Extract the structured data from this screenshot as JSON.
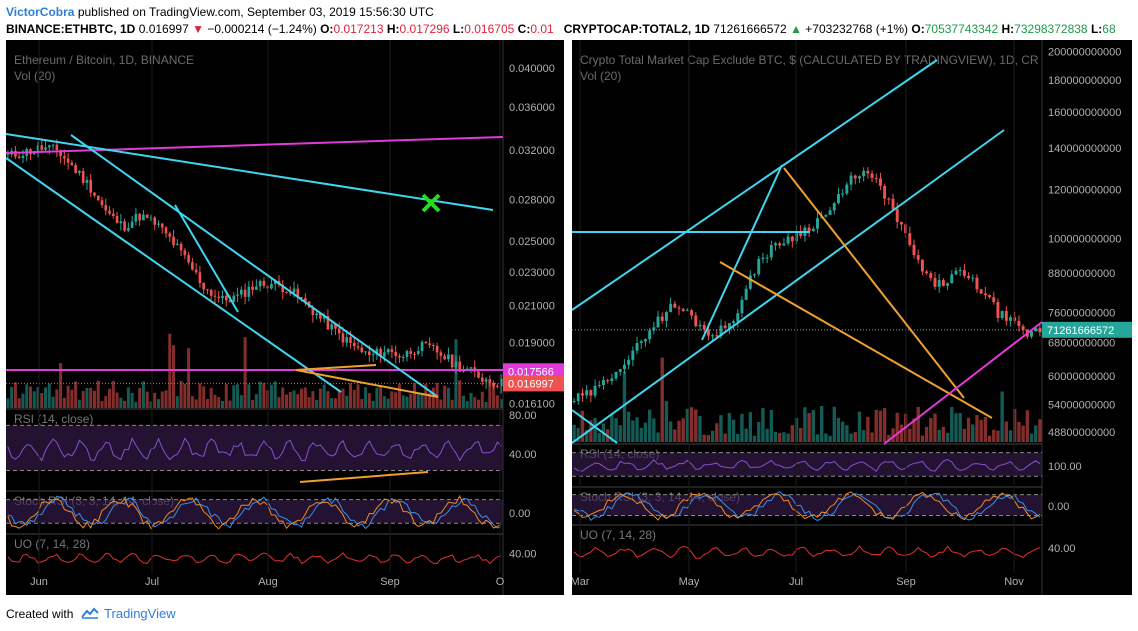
{
  "header": {
    "author": "VictorCobra",
    "published": "published on TradingView.com, September 03, 2019 15:56:30 UTC",
    "left_quote": {
      "symbol": "BINANCE:ETHBTC, 1D",
      "last": "0.016997",
      "arrow": "▼",
      "change": "−0.000214 (−1.24%)",
      "o_label": "O:",
      "o": "0.017213",
      "h_label": "H:",
      "h": "0.017296",
      "l_label": "L:",
      "l": "0.016705",
      "c_label": "C:",
      "c": "0.01"
    },
    "right_quote": {
      "symbol": "CRYPTOCAP:TOTAL2, 1D",
      "last": "71261666572",
      "arrow": "▲",
      "change": "+703232768 (+1%)",
      "o_label": "O:",
      "o": "70537743342",
      "h_label": "H:",
      "h": "73298372838",
      "l_label": "L:",
      "l": "68"
    }
  },
  "footer": {
    "created_with": "Created with",
    "brand": "TradingView"
  },
  "colors": {
    "background": "#000000",
    "up_candle": "#26a69a",
    "down_candle": "#ef5350",
    "cyan": "#3fd6f0",
    "magenta": "#e03ad8",
    "orange": "#f0a030",
    "green_x": "#22dd22",
    "axis_text": "#b0b0b0",
    "rsi_line": "#8a4fd0",
    "stoch_k": "#3a8ee8",
    "stoch_d": "#f08a20",
    "uo_line": "#e03030"
  },
  "chart_data": [
    {
      "type": "candlestick",
      "title": "Ethereum / Bitcoin, 1D, BINANCE",
      "volume_label": "Vol (20)",
      "x_ticks": [
        "Jun",
        "Jul",
        "Aug",
        "Sep",
        "O"
      ],
      "y_ticks": [
        "0.040000",
        "0.036000",
        "0.032000",
        "0.028000",
        "0.025000",
        "0.023000",
        "0.021000",
        "0.019000",
        "0.016100"
      ],
      "ylim": [
        0.0159,
        0.042
      ],
      "scale": "log",
      "price_labels": [
        {
          "value": "0.017566",
          "color": "#e03ad8"
        },
        {
          "value": "0.016997",
          "color": "#ef5350"
        }
      ],
      "series": [
        {
          "name": "close_path",
          "values": [
            0.0315,
            0.0318,
            0.0322,
            0.032,
            0.0305,
            0.029,
            0.027,
            0.026,
            0.0268,
            0.0262,
            0.025,
            0.0235,
            0.022,
            0.0213,
            0.0215,
            0.0222,
            0.0223,
            0.022,
            0.0212,
            0.0203,
            0.0195,
            0.0188,
            0.0183,
            0.0186,
            0.0183,
            0.0188,
            0.0186,
            0.018,
            0.0176,
            0.0172,
            0.017
          ]
        }
      ],
      "annotations": [
        "green X marker"
      ],
      "indicators": [
        {
          "name": "RSI (14, close)",
          "ticks": [
            "80.00",
            "40.00"
          ]
        },
        {
          "name": "Stoch RSI (3, 3, 14, 14, close)",
          "ticks": [
            "0.00"
          ]
        },
        {
          "name": "UO (7, 14, 28)",
          "ticks": [
            "40.00"
          ]
        }
      ]
    },
    {
      "type": "candlestick",
      "title": "Crypto Total Market Cap Exclude BTC, $ (CALCULATED BY TRADINGVIEW), 1D, CR",
      "volume_label": "Vol (20)",
      "x_ticks": [
        "Mar",
        "May",
        "Jul",
        "Sep",
        "Nov"
      ],
      "y_ticks": [
        "200000000000",
        "180000000000",
        "160000000000",
        "140000000000",
        "120000000000",
        "100000000000",
        "88000000000",
        "76000000000",
        "68000000000",
        "60000000000",
        "54000000000",
        "48800000000"
      ],
      "ylim": [
        47000000000,
        205000000000
      ],
      "scale": "log",
      "price_labels": [
        {
          "value": "71261666572",
          "color": "#26a69a"
        }
      ],
      "series": [
        {
          "name": "close_path",
          "values": [
            55000000000,
            56000000000,
            58000000000,
            62000000000,
            64000000000,
            70000000000,
            74000000000,
            78000000000,
            76000000000,
            72000000000,
            70000000000,
            73000000000,
            80000000000,
            92000000000,
            96000000000,
            100000000000,
            102000000000,
            106000000000,
            110000000000,
            118000000000,
            128000000000,
            126000000000,
            118000000000,
            106000000000,
            95000000000,
            86000000000,
            84000000000,
            88000000000,
            86000000000,
            82000000000,
            76000000000,
            73000000000,
            70000000000,
            71261666572
          ]
        }
      ],
      "indicators": [
        {
          "name": "RSI (14, close)",
          "ticks": [
            "100.00"
          ]
        },
        {
          "name": "Stoch RSI (3, 3, 14, 14, close)",
          "ticks": [
            "0.00"
          ]
        },
        {
          "name": "UO (7, 14, 28)",
          "ticks": [
            "40.00"
          ]
        }
      ]
    }
  ]
}
